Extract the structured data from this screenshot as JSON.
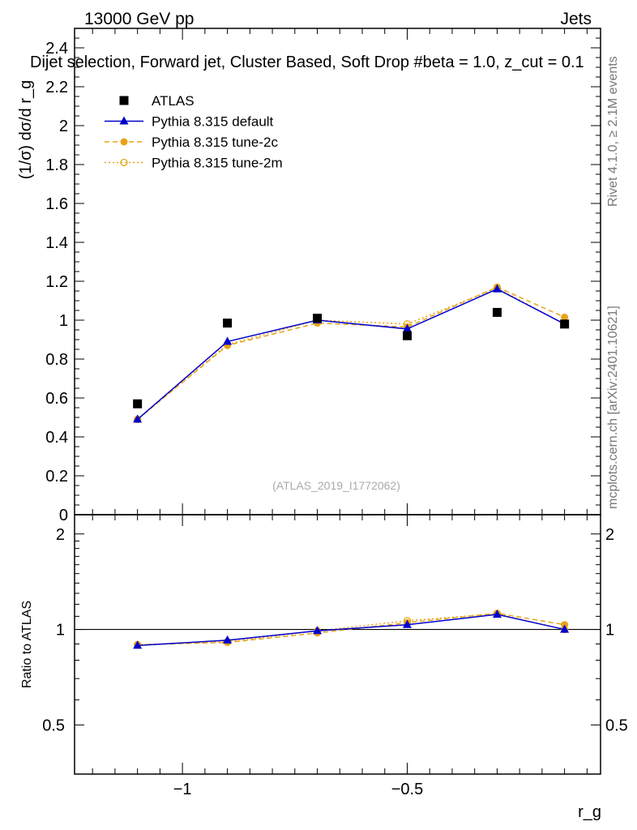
{
  "header": {
    "left": "13000 GeV pp",
    "right": "Jets",
    "subtitle": "Dijet selection, Forward jet, Cluster Based, Soft Drop #beta = 1.0, z_cut = 0.1"
  },
  "side_labels": {
    "rivet": "Rivet 4.1.0, ≥ 2.1M events",
    "mcplots": "mcplots.cern.ch [arXiv:2401.10621]"
  },
  "watermark": "(ATLAS_2019_I1772062)",
  "colors": {
    "atlas": "#000000",
    "default": "#0000cc",
    "tune2c": "#e8a317",
    "tune2m": "#e8a317"
  },
  "chart_data": [
    {
      "name": "main",
      "type": "line",
      "ylabel": "(1/σ) dσ/d r_g",
      "xlabel": "r_g",
      "xlim": [
        -1.24,
        -0.07
      ],
      "ylim": [
        0,
        2.5
      ],
      "x_ticks": [
        -1,
        -0.5
      ],
      "y_ticks": [
        0,
        0.2,
        0.4,
        0.6,
        0.8,
        1,
        1.2,
        1.4,
        1.6,
        1.8,
        2,
        2.2,
        2.4
      ],
      "y_tick_labels": [
        "0",
        "0.2",
        "0.4",
        "0.6",
        "0.8",
        "1",
        "1.2",
        "1.4",
        "1.6",
        "1.8",
        "2",
        "2.2",
        "2.4"
      ],
      "x": [
        -1.1,
        -0.9,
        -0.7,
        -0.5,
        -0.3,
        -0.15
      ],
      "legend": [
        {
          "key": "atlas",
          "label": "ATLAS"
        },
        {
          "key": "default",
          "label": "Pythia 8.315 default"
        },
        {
          "key": "tune2c",
          "label": "Pythia 8.315 tune-2c"
        },
        {
          "key": "tune2m",
          "label": "Pythia 8.315 tune-2m"
        }
      ],
      "series": [
        {
          "key": "atlas",
          "name": "ATLAS",
          "values": [
            0.57,
            0.985,
            1.01,
            0.92,
            1.04,
            0.98
          ]
        },
        {
          "key": "default",
          "name": "Pythia 8.315 default",
          "values": [
            0.49,
            0.89,
            1.0,
            0.955,
            1.16,
            0.98
          ]
        },
        {
          "key": "tune2c",
          "name": "Pythia 8.315 tune-2c",
          "values": [
            0.49,
            0.87,
            0.985,
            0.965,
            1.17,
            1.015
          ]
        },
        {
          "key": "tune2m",
          "name": "Pythia 8.315 tune-2m",
          "values": [
            0.49,
            0.875,
            1.0,
            0.98,
            1.165,
            0.98
          ]
        }
      ]
    },
    {
      "name": "ratio",
      "type": "line",
      "ylabel": "Ratio to ATLAS",
      "xlabel": "r_g",
      "xlim": [
        -1.24,
        -0.07
      ],
      "ylim": [
        0.35,
        2.3
      ],
      "y_ticks": [
        0.5,
        1,
        2
      ],
      "y_tick_labels": [
        "0.5",
        "1",
        "2"
      ],
      "x_ticks": [
        -1,
        -0.5
      ],
      "x_tick_labels": [
        "−1",
        "−0.5"
      ],
      "x": [
        -1.1,
        -0.9,
        -0.7,
        -0.5,
        -0.3,
        -0.15
      ],
      "series": [
        {
          "key": "default",
          "name": "Pythia 8.315 default",
          "values": [
            0.89,
            0.925,
            0.99,
            1.035,
            1.115,
            1.0
          ]
        },
        {
          "key": "tune2c",
          "name": "Pythia 8.315 tune-2c",
          "values": [
            0.895,
            0.91,
            0.975,
            1.05,
            1.125,
            1.035
          ]
        },
        {
          "key": "tune2m",
          "name": "Pythia 8.315 tune-2m",
          "values": [
            0.895,
            0.915,
            0.99,
            1.065,
            1.12,
            1.0
          ]
        }
      ]
    }
  ]
}
